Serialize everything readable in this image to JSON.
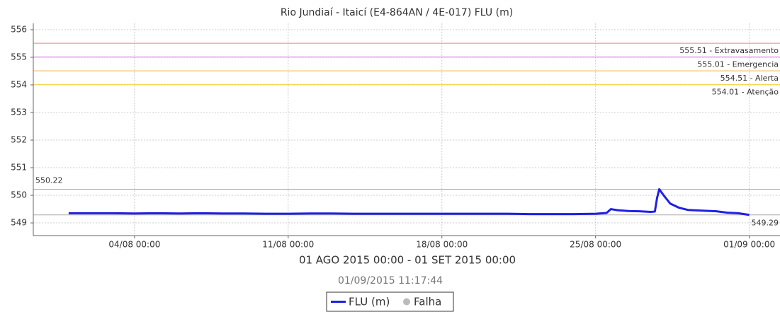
{
  "chart_data": {
    "type": "line",
    "title": "Rio Jundiaí - Itaicí (E4-864AN / 4E-017) FLU (m)",
    "x_label": "01 AGO 2015 00:00 - 01 SET 2015 00:00",
    "timestamp": "01/09/2015 11:17:44",
    "x": [
      0,
      1,
      2,
      3,
      4,
      5,
      6,
      7,
      8,
      9,
      10,
      11,
      12,
      13,
      14,
      15,
      16,
      17,
      18,
      19,
      20,
      21,
      22,
      23,
      24,
      24.5,
      24.7,
      25,
      25.5,
      26,
      26.5,
      26.7,
      26.8,
      26.9,
      27.1,
      27.4,
      27.8,
      28.2,
      28.7,
      29.5,
      30,
      30.5,
      31
    ],
    "series": [
      {
        "name": "FLU (m)",
        "color": "#1f1fe6",
        "values": [
          549.35,
          549.35,
          549.35,
          549.34,
          549.35,
          549.34,
          549.35,
          549.34,
          549.34,
          549.33,
          549.33,
          549.34,
          549.34,
          549.33,
          549.33,
          549.33,
          549.33,
          549.33,
          549.33,
          549.33,
          549.33,
          549.32,
          549.32,
          549.32,
          549.33,
          549.36,
          549.5,
          549.46,
          549.43,
          549.42,
          549.4,
          549.41,
          549.9,
          550.22,
          550.0,
          549.7,
          549.55,
          549.47,
          549.45,
          549.42,
          549.37,
          549.35,
          549.29
        ]
      }
    ],
    "legend_extra": {
      "name": "Falha",
      "color": "#bbbbbb"
    },
    "xlim": [
      -1.61,
      32.4
    ],
    "xticks": [
      {
        "value": 3,
        "label": "04/08 00:00"
      },
      {
        "value": 10,
        "label": "11/08 00:00"
      },
      {
        "value": 17,
        "label": "18/08 00:00"
      },
      {
        "value": 24,
        "label": "25/08 00:00"
      },
      {
        "value": 31,
        "label": "01/09 00:00"
      }
    ],
    "ylim": [
      548.54,
      556.23
    ],
    "yticks": [
      549,
      550,
      551,
      552,
      553,
      554,
      555,
      556
    ],
    "thresholds": [
      {
        "value": 555.51,
        "label": "555.51 - Extravasamento",
        "color": "#f08080"
      },
      {
        "value": 555.01,
        "label": "555.01 - Emergencia",
        "color": "#d070e0"
      },
      {
        "value": 554.51,
        "label": "554.51 - Alerta",
        "color": "#f5b040"
      },
      {
        "value": 554.01,
        "label": "554.01 - Atenção",
        "color": "#f0d040"
      }
    ],
    "max_line": {
      "value": 550.22
    },
    "last_line": {
      "value": 549.29
    },
    "grid": true
  }
}
